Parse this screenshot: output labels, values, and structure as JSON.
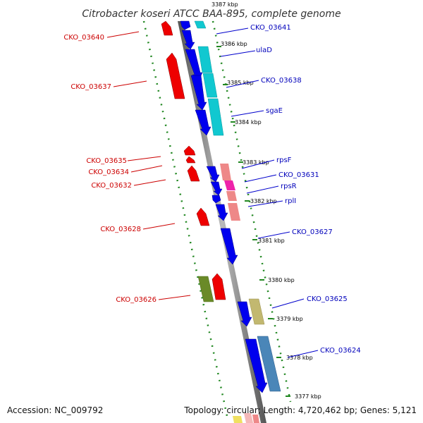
{
  "title": "Citrobacter koseri ATCC BAA-895, complete genome",
  "accession": "Accession: NC_009792",
  "topology": "Topology: circular; Length: 4,720,462 bp; Genes: 5,121",
  "colors": {
    "forward": "#0000ee",
    "reverse": "#ee0000",
    "forward_label": "#0000bb",
    "reverse_label": "#cc0000",
    "cyan": "#11c8d0",
    "salmon": "#ee8888",
    "magenta": "#ee22aa",
    "olive": "#c2b870",
    "steel": "#4a86b8",
    "green_feature": "#6a8a28",
    "ticks": "#228822",
    "backbone": "#888888"
  },
  "kbp_labels": [
    "3387 kbp",
    "3386 kbp",
    "3385 kbp",
    "3384 kbp",
    "3383 kbp",
    "3382 kbp",
    "3381 kbp",
    "3380 kbp",
    "3379 kbp",
    "3378 kbp",
    "3377 kbp"
  ],
  "forward_labels": [
    "CKO_03641",
    "ulaD",
    "CKO_03638",
    "sgaE",
    "rpsF",
    "CKO_03631",
    "rpsR",
    "rplI",
    "CKO_03627",
    "CKO_03625",
    "CKO_03624"
  ],
  "reverse_labels": [
    "CKO_03640",
    "CKO_03637",
    "CKO_03635",
    "CKO_03634",
    "CKO_03632",
    "CKO_03628",
    "CKO_03626"
  ]
}
